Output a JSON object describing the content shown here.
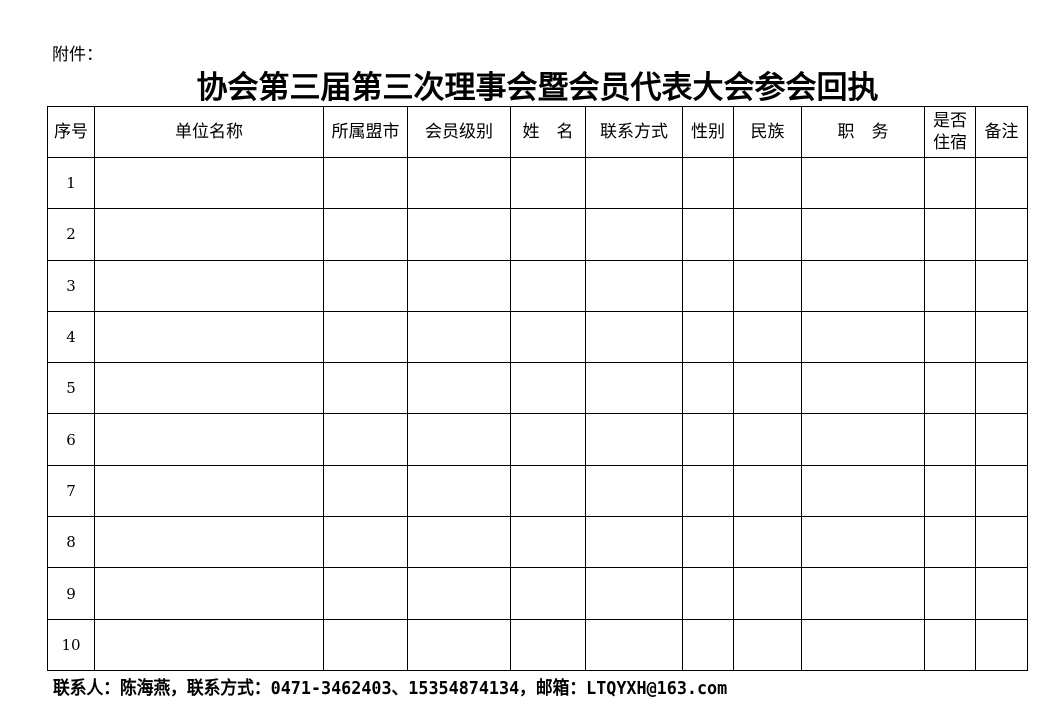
{
  "attachment_label": "附件：",
  "title": "协会第三届第三次理事会暨会员代表大会参会回执",
  "table": {
    "headers": [
      "序号",
      "单位名称",
      "所属盟市",
      "会员级别",
      "姓　名",
      "联系方式",
      "性别",
      "民族",
      "职　务",
      "是否住宿",
      "备注"
    ],
    "rows": [
      "1",
      "2",
      "3",
      "4",
      "5",
      "6",
      "7",
      "8",
      "9",
      "10"
    ]
  },
  "footer": "联系人：陈海燕，联系方式：0471-3462403、15354874134，邮箱：LTQYXH@163.com"
}
